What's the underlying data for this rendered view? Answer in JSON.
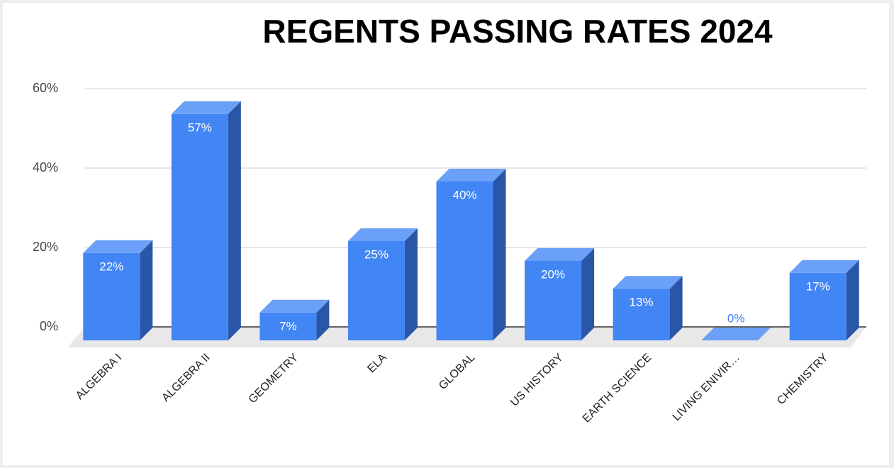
{
  "chart_data": {
    "type": "bar3d",
    "title": "REGENTS PASSING RATES 2024",
    "categories": [
      "ALGEBRA I",
      "ALGEBRA II",
      "GEOMETRY",
      "ELA",
      "GLOBAL",
      "US HISTORY",
      "EARTH SCIENCE",
      "LIVING ENIVIR…",
      "CHEMISTRY"
    ],
    "values": [
      22,
      57,
      7,
      25,
      40,
      20,
      13,
      0,
      17
    ],
    "value_labels": [
      "22%",
      "57%",
      "7%",
      "25%",
      "40%",
      "20%",
      "13%",
      "0%",
      "17%"
    ],
    "color": "#4285f4",
    "ylim": [
      0,
      60
    ],
    "yticks": [
      {
        "value": 0,
        "label": "0%"
      },
      {
        "value": 20,
        "label": "20%"
      },
      {
        "value": 40,
        "label": "40%"
      },
      {
        "value": 60,
        "label": "60%"
      }
    ],
    "grid": true
  }
}
